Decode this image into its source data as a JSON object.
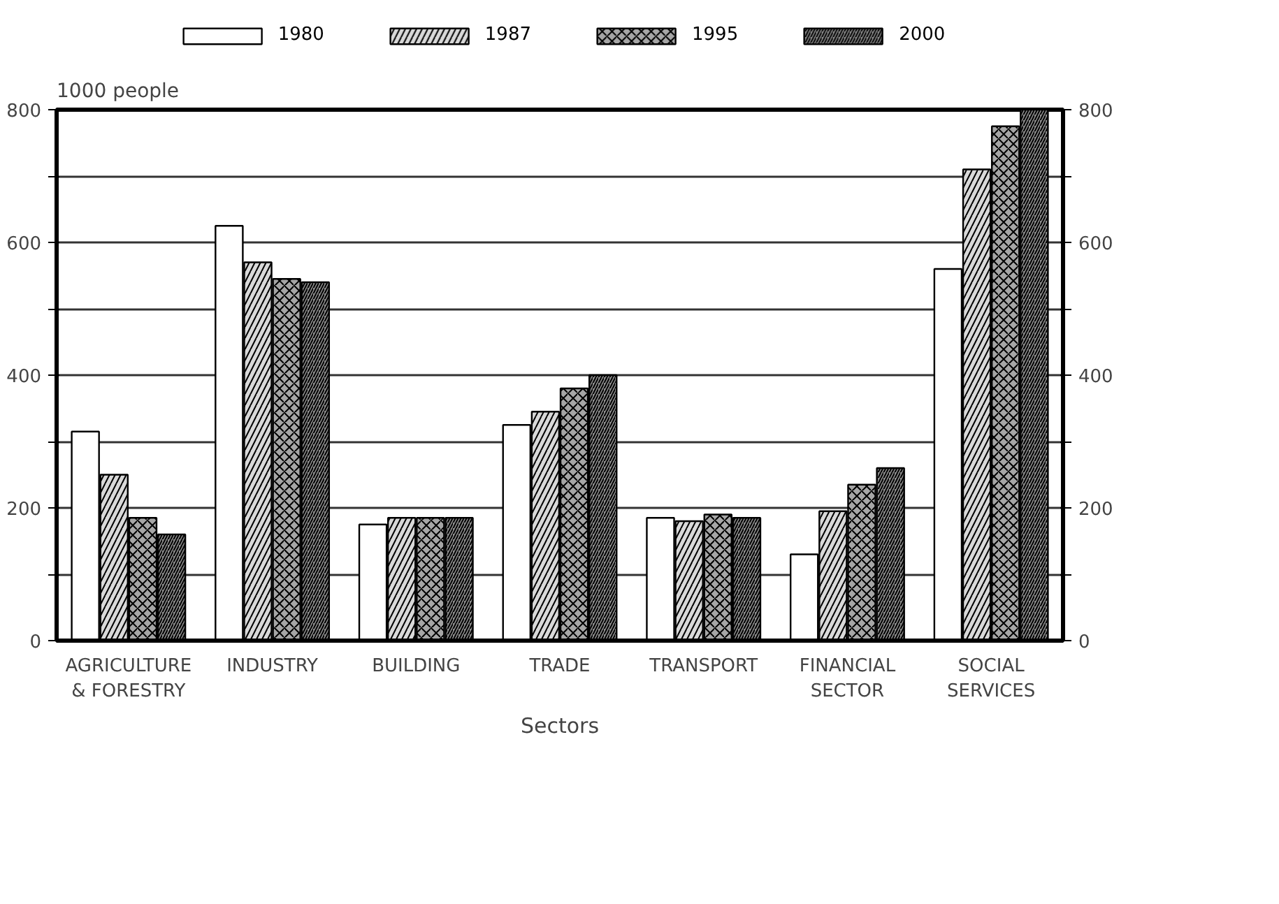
{
  "chart_data": {
    "type": "bar",
    "xlabel": "Sectors",
    "ylabel": "1000 people",
    "categories": [
      "AGRICULTURE & FORESTRY",
      "INDUSTRY",
      "BUILDING",
      "TRADE",
      "TRANSPORT",
      "FINANCIAL SECTOR",
      "SOCIAL SERVICES"
    ],
    "series": [
      {
        "name": "1980",
        "color": "#ffffff",
        "values": [
          315,
          625,
          175,
          325,
          185,
          130,
          560
        ]
      },
      {
        "name": "1987",
        "color": "#d9d9d9",
        "values": [
          250,
          570,
          185,
          345,
          180,
          195,
          710
        ]
      },
      {
        "name": "1995",
        "color": "#a6a6a6",
        "values": [
          185,
          545,
          185,
          380,
          190,
          235,
          775
        ]
      },
      {
        "name": "2000",
        "color": "#8c8c8c",
        "values": [
          160,
          540,
          185,
          400,
          185,
          260,
          800
        ]
      }
    ],
    "ylim": [
      0,
      800
    ],
    "yticks": [
      0,
      {
        "value": 100,
        "label": null
      },
      200,
      {
        "value": 300,
        "label": null
      },
      400,
      {
        "value": 500,
        "label": null
      },
      600,
      {
        "value": 700,
        "label": null
      },
      800
    ],
    "y2lim": [
      0,
      800
    ],
    "y2ticks": [
      0,
      {
        "value": 100,
        "label": null
      },
      200,
      {
        "value": 300,
        "label": null
      },
      400,
      {
        "value": 500,
        "label": null
      },
      600,
      {
        "value": 700,
        "label": null
      },
      800
    ],
    "grid": "y",
    "legend": "top"
  }
}
